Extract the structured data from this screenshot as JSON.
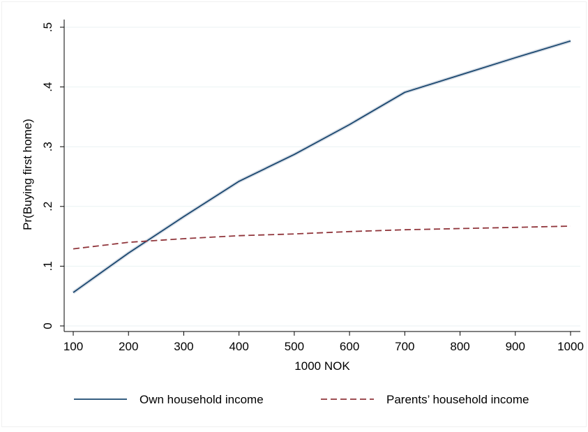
{
  "chart_data": {
    "type": "line",
    "title": "",
    "xlabel": "1000 NOK",
    "ylabel": "Pr(Buying first home)",
    "xlim": [
      100,
      1000
    ],
    "ylim": [
      0,
      0.5
    ],
    "x_ticks": [
      100,
      200,
      300,
      400,
      500,
      600,
      700,
      800,
      900,
      1000
    ],
    "x_tick_labels": [
      "100",
      "200",
      "300",
      "400",
      "500",
      "600",
      "700",
      "800",
      "900",
      "1000"
    ],
    "y_ticks": [
      0,
      0.1,
      0.2,
      0.3,
      0.4,
      0.5
    ],
    "y_tick_labels": [
      "0",
      ".1",
      ".2",
      ".3",
      ".4",
      ".5"
    ],
    "grid": true,
    "legend_position": "bottom",
    "series": [
      {
        "name": "Own household income",
        "style": "solid",
        "color": "#1a476f",
        "x": [
          100,
          200,
          300,
          400,
          500,
          600,
          700,
          800,
          900,
          1000
        ],
        "y": [
          0.056,
          0.122,
          0.183,
          0.242,
          0.287,
          0.337,
          0.391,
          0.42,
          0.449,
          0.477
        ]
      },
      {
        "name": "Parents’ household income",
        "style": "dashed",
        "color": "#90353b",
        "x": [
          100,
          200,
          300,
          400,
          500,
          600,
          700,
          800,
          900,
          1000
        ],
        "y": [
          0.129,
          0.14,
          0.146,
          0.151,
          0.154,
          0.158,
          0.161,
          0.163,
          0.165,
          0.167
        ]
      }
    ]
  }
}
